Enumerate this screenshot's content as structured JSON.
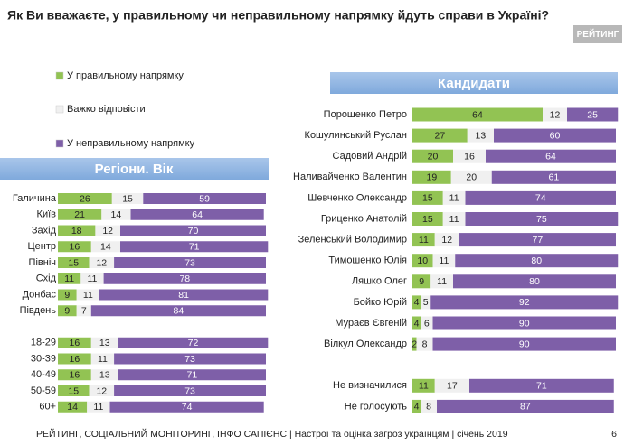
{
  "header": {
    "title": "Як Ви вважаєте, у правильному чи неправильному напрямку йдуть справи в Україні?",
    "logo": "РЕЙТИНГ"
  },
  "footer": {
    "text": "РЕЙТИНГ, СОЦІАЛЬНИЙ МОНІТОРИНГ, ІНФО САПІЄНС | Настрої та оцінка загроз українцям | січень 2019",
    "page": "6"
  },
  "chart_data": [
    {
      "type": "bar",
      "orientation": "horizontal",
      "stacked": true,
      "title": "Регіони. Вік",
      "categories": [
        "Галичина",
        "Київ",
        "Захід",
        "Центр",
        "Північ",
        "Схід",
        "Донбас",
        "Південь",
        null,
        "18-29",
        "30-39",
        "40-49",
        "50-59",
        "60+"
      ],
      "series": [
        {
          "name": "У правильному напрямку",
          "color": "#92c353",
          "values": [
            26,
            21,
            18,
            16,
            15,
            11,
            9,
            9,
            null,
            16,
            16,
            16,
            15,
            14
          ]
        },
        {
          "name": "Важко відповісти",
          "color": "#f0f0f0",
          "values": [
            15,
            14,
            12,
            14,
            12,
            11,
            11,
            7,
            null,
            13,
            11,
            13,
            12,
            11
          ]
        },
        {
          "name": "У неправильному напрямку",
          "color": "#7e5fa8",
          "values": [
            59,
            64,
            70,
            71,
            73,
            78,
            81,
            84,
            null,
            72,
            73,
            71,
            73,
            74
          ]
        }
      ]
    },
    {
      "type": "bar",
      "orientation": "horizontal",
      "stacked": true,
      "title": "Кандидати",
      "categories": [
        "Порошенко Петро",
        "Кошулинський Руслан",
        "Садовий Андрій",
        "Наливайченко Валентин",
        "Шевченко Олександр",
        "Гриценко Анатолій",
        "Зеленський Володимир",
        "Тимошенко Юлія",
        "Ляшко Олег",
        "Бойко Юрій",
        "Мураєв Євгеній",
        "Вілкул Олександр",
        null,
        "Не визначилися",
        "Не голосують"
      ],
      "series": [
        {
          "color": "#92c353",
          "values": [
            64,
            27,
            20,
            19,
            15,
            15,
            11,
            10,
            9,
            4,
            4,
            2,
            null,
            11,
            4
          ]
        },
        {
          "color": "#f0f0f0",
          "values": [
            12,
            13,
            16,
            20,
            11,
            11,
            12,
            11,
            11,
            5,
            6,
            8,
            null,
            17,
            8
          ]
        },
        {
          "color": "#7e5fa8",
          "values": [
            25,
            60,
            64,
            61,
            74,
            75,
            77,
            80,
            80,
            92,
            90,
            90,
            null,
            71,
            87
          ]
        }
      ]
    }
  ]
}
